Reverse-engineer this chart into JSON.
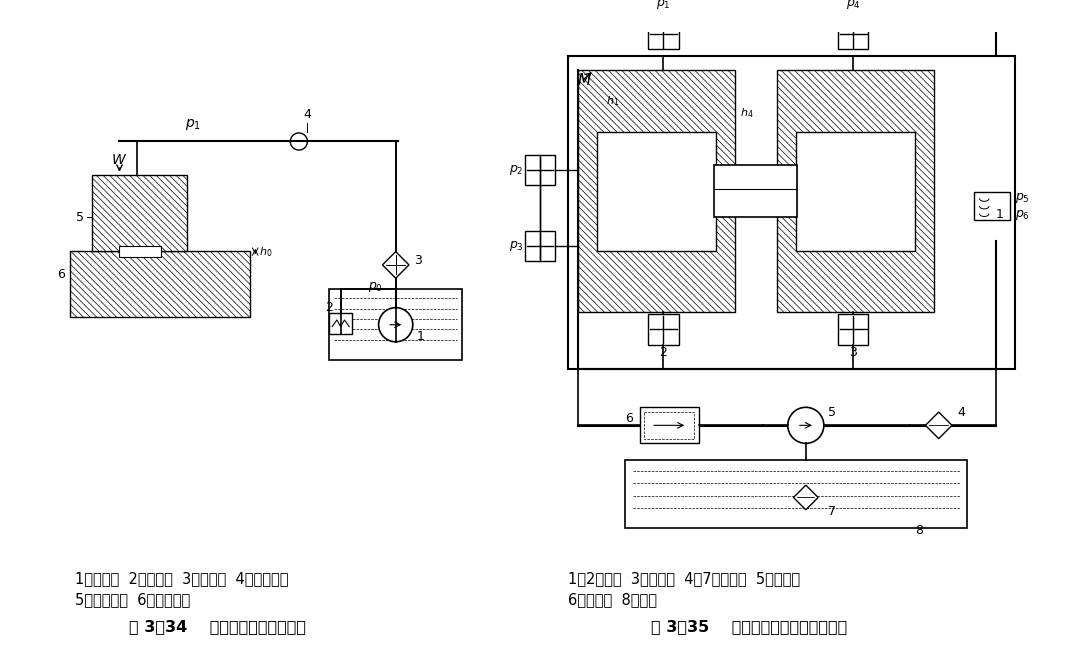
{
  "title_left": "图 3－34    开式静压导轨工作原理",
  "title_right": "图 3－35    闭式液体静压导轨工作原理",
  "caption_left_line1": "1－液压泵  2－溢流阀  3－过滤阀  4－节流阀器",
  "caption_left_line2": "5－运动导轨  6－床身导轨",
  "caption_right_line1": "1、2－导轨  3－节流阀  4、7－过滤器  5－液压泵",
  "caption_right_line2": "6－溢流阀  8－油箱",
  "bg_color": "#ffffff",
  "line_color": "#000000"
}
